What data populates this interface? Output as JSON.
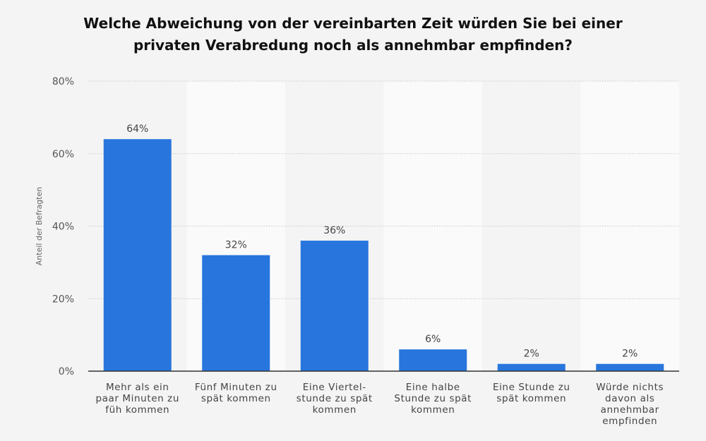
{
  "chart_data": {
    "type": "bar",
    "title_lines": [
      "Welche Abweichung von der vereinbarten Zeit würden Sie bei einer",
      "privaten Verabredung noch als annehmbar empfinden?"
    ],
    "ylabel": "Anteil der Befragten",
    "ylim": [
      0,
      80
    ],
    "yticks": [
      0,
      20,
      40,
      60,
      80
    ],
    "ytick_labels": [
      "0%",
      "20%",
      "40%",
      "60%",
      "80%"
    ],
    "categories": [
      [
        "Mehr als ein",
        "paar Minuten zu",
        "füh kommen"
      ],
      [
        "Fünf Minuten zu",
        "spät kommen"
      ],
      [
        "Eine Viertel-",
        "stunde zu spät",
        "kommen"
      ],
      [
        "Eine halbe",
        "Stunde zu spät",
        "kommen"
      ],
      [
        "Eine Stunde zu",
        "spät kommen"
      ],
      [
        "Würde nichts",
        "davon als",
        "annehmbar",
        "empfinden"
      ]
    ],
    "values": [
      64,
      32,
      36,
      6,
      2,
      2
    ],
    "data_labels": [
      "64%",
      "32%",
      "36%",
      "6%",
      "2%",
      "2%"
    ],
    "grid": true,
    "bar_color": "#2876dd",
    "alt_band_color": "#fafafa"
  }
}
